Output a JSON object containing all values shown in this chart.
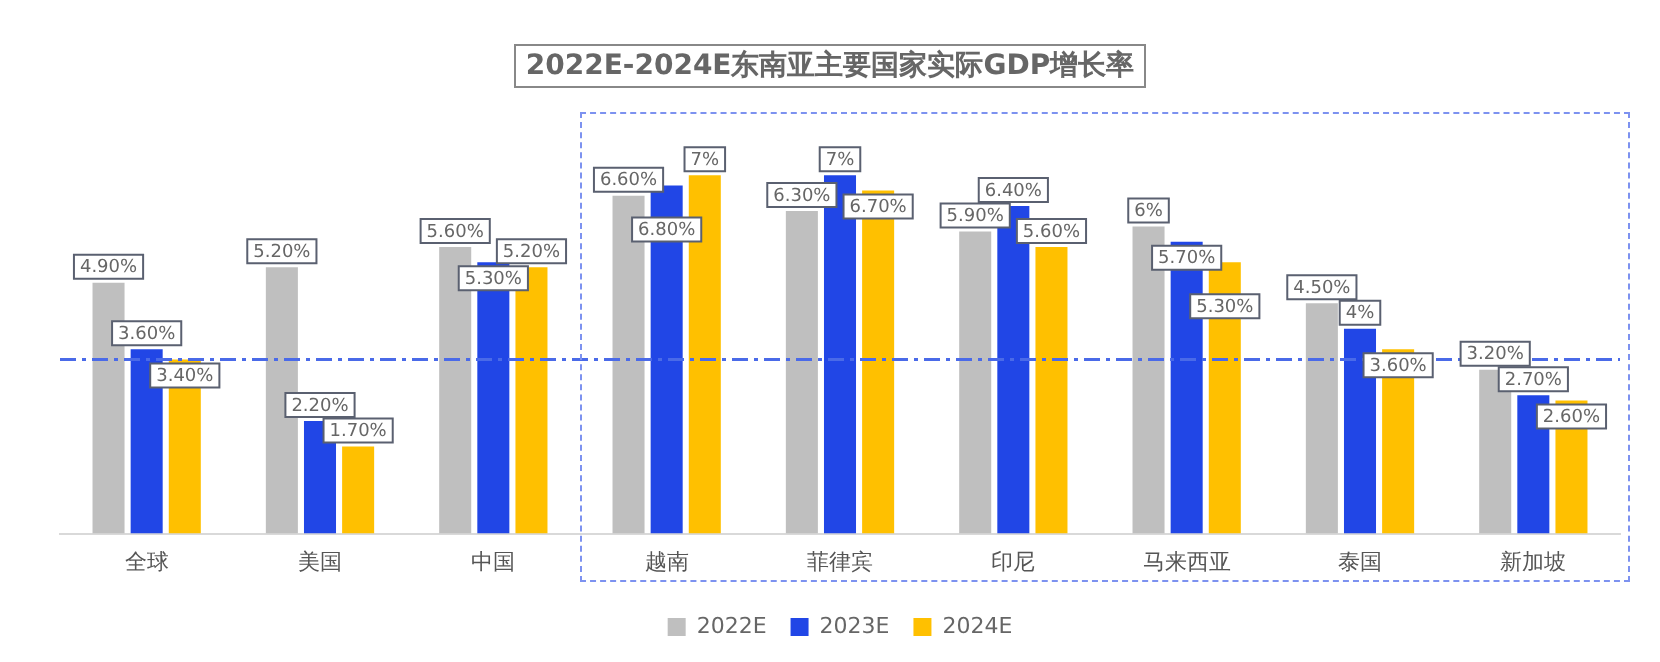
{
  "chart_data": {
    "type": "bar",
    "title": "2022E-2024E东南亚主要国家实际GDP增长率",
    "categories": [
      "全球",
      "美国",
      "中国",
      "越南",
      "菲律宾",
      "印尼",
      "马来西亚",
      "泰国",
      "新加坡"
    ],
    "series": [
      {
        "name": "2022E",
        "color": "#bfbfbf",
        "values": [
          4.9,
          5.2,
          5.6,
          6.6,
          6.3,
          5.9,
          6,
          4.5,
          3.2
        ],
        "value_labels": [
          "4.90%",
          "5.20%",
          "5.60%",
          "6.60%",
          "6.30%",
          "5.90%",
          "6%",
          "4.50%",
          "3.20%"
        ]
      },
      {
        "name": "2023E",
        "color": "#2146e6",
        "values": [
          3.6,
          2.2,
          5.3,
          6.8,
          7,
          6.4,
          5.7,
          4,
          2.7
        ],
        "value_labels": [
          "3.60%",
          "2.20%",
          "5.30%",
          "6.80%",
          "7%",
          "6.40%",
          "5.70%",
          "4%",
          "2.70%"
        ]
      },
      {
        "name": "2024E",
        "color": "#ffc000",
        "values": [
          3.4,
          1.7,
          5.2,
          7,
          6.7,
          5.6,
          5.3,
          3.6,
          2.6
        ],
        "value_labels": [
          "3.40%",
          "1.70%",
          "5.20%",
          "7%",
          "6.70%",
          "5.60%",
          "5.30%",
          "3.60%",
          "2.60%"
        ]
      }
    ],
    "ref_lines": [
      {
        "axis": "y",
        "value": 3.4,
        "color": "#4a6ae8",
        "line_style": "dashdot"
      }
    ],
    "grid": false,
    "legend": "bottom"
  }
}
